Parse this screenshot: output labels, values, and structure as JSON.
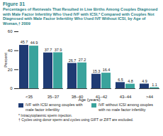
{
  "chart_data": {
    "type": "bar",
    "title": "Figure 31",
    "subtitle": "Percentages of Retrievals That Resulted in Live Births Among Couples Diagnosed with Male Factor Infertility Who Used IVF with ICSI,* Compared with Couples Not Diagnosed with Male Factor Infertility Who Used IVF Without ICSI, by Age of Woman,† 2009",
    "x_label": "Age (years)",
    "y_label": "Percent",
    "categories": [
      "<35",
      "35–37",
      "38–40",
      "41–42",
      "43–44",
      ">44"
    ],
    "series": [
      {
        "name": "IVF with ICSI among couples with male factor infertility",
        "color": "#1f3b73",
        "values": [
          45.7,
          37.7,
          26.7,
          15.3,
          6.5,
          4.9
        ]
      },
      {
        "name": "IVF without ICSI among couples with no male factor infertility",
        "color": "#3aa39c",
        "values": [
          44.9,
          37.9,
          27.2,
          16.4,
          4.8,
          1.1
        ]
      }
    ],
    "ylim": [
      0,
      60
    ],
    "yticks": [
      0,
      20,
      40,
      60
    ],
    "grid": false,
    "data_labels": true,
    "legend": "bottom",
    "notes": [
      "* Intracytoplasmic sperm injection.",
      "† Cycles using donor sperm and cycles using GIFT or ZIFT are excluded."
    ]
  }
}
